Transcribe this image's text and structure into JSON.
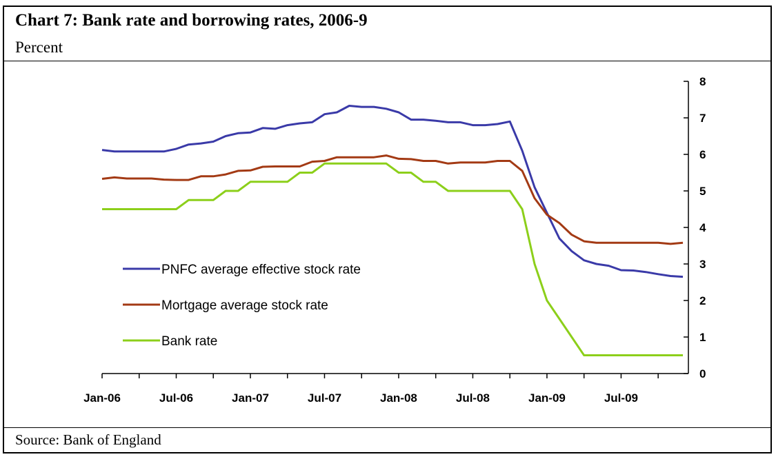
{
  "header": {
    "title": "Chart 7: Bank rate and borrowing rates, 2006-9",
    "subtitle": "Percent"
  },
  "footer": {
    "source": "Source: Bank of England"
  },
  "chart_data": {
    "type": "line",
    "y_axis_position": "right",
    "ylim": [
      0,
      8
    ],
    "yticks": [
      0,
      1,
      2,
      3,
      4,
      5,
      6,
      7,
      8
    ],
    "x_start": "2006-01",
    "x_end": "2009-12",
    "xtick_labels": [
      "Jan-06",
      "Jul-06",
      "Jan-07",
      "Jul-07",
      "Jan-08",
      "Jul-08",
      "Jan-09",
      "Jul-09"
    ],
    "legend_position": "lower-left",
    "grid": false,
    "series": [
      {
        "name": "PNFC average effective stock rate",
        "color": "#3a3aa8",
        "values": [
          6.12,
          6.08,
          6.08,
          6.08,
          6.08,
          6.08,
          6.15,
          6.27,
          6.3,
          6.35,
          6.5,
          6.58,
          6.6,
          6.72,
          6.7,
          6.8,
          6.85,
          6.88,
          7.1,
          7.15,
          7.33,
          7.3,
          7.3,
          7.25,
          7.15,
          6.95,
          6.95,
          6.92,
          6.88,
          6.88,
          6.8,
          6.8,
          6.83,
          6.9,
          6.1,
          5.1,
          4.4,
          3.7,
          3.35,
          3.1,
          3.0,
          2.95,
          2.83,
          2.82,
          2.78,
          2.72,
          2.67,
          2.65
        ]
      },
      {
        "name": "Mortgage average stock rate",
        "color": "#a33a14",
        "values": [
          5.33,
          5.37,
          5.34,
          5.34,
          5.34,
          5.31,
          5.3,
          5.3,
          5.4,
          5.4,
          5.45,
          5.55,
          5.56,
          5.66,
          5.67,
          5.67,
          5.67,
          5.8,
          5.82,
          5.92,
          5.92,
          5.92,
          5.92,
          5.97,
          5.88,
          5.87,
          5.82,
          5.82,
          5.75,
          5.78,
          5.78,
          5.78,
          5.82,
          5.82,
          5.55,
          4.8,
          4.35,
          4.12,
          3.8,
          3.62,
          3.58,
          3.58,
          3.58,
          3.58,
          3.58,
          3.58,
          3.55,
          3.58
        ]
      },
      {
        "name": "Bank rate",
        "color": "#8ccf1a",
        "values": [
          4.5,
          4.5,
          4.5,
          4.5,
          4.5,
          4.5,
          4.5,
          4.75,
          4.75,
          4.75,
          5.0,
          5.0,
          5.25,
          5.25,
          5.25,
          5.25,
          5.5,
          5.5,
          5.75,
          5.75,
          5.75,
          5.75,
          5.75,
          5.75,
          5.5,
          5.5,
          5.25,
          5.25,
          5.0,
          5.0,
          5.0,
          5.0,
          5.0,
          5.0,
          4.5,
          3.0,
          2.0,
          1.5,
          1.0,
          0.5,
          0.5,
          0.5,
          0.5,
          0.5,
          0.5,
          0.5,
          0.5,
          0.5
        ]
      }
    ]
  }
}
